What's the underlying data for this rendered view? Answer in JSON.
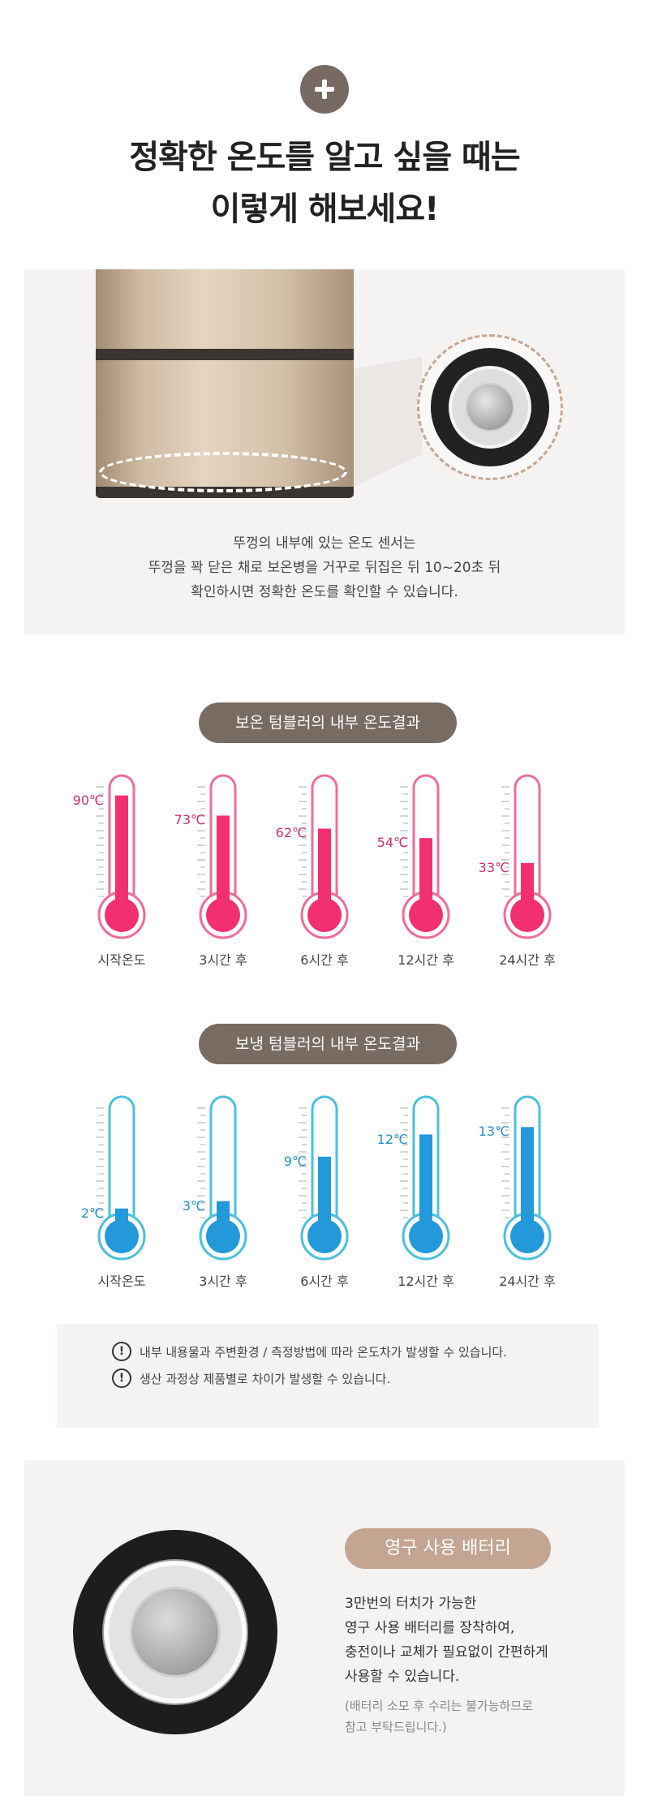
{
  "header": {
    "icon": "plus-icon",
    "title_line1": "정확한 온도를 알고 싶을 때는",
    "title_line2": "이렇게 해보세요!"
  },
  "sensor_section": {
    "desc_line1": "뚜껑의 내부에 있는 온도 센서는",
    "desc_line2": "뚜껑을 꽉 닫은 채로 보온병을 거꾸로 뒤집은 뒤 10~20초 뒤",
    "desc_line3": "확인하시면 정확한 온도를 확인할 수 있습니다."
  },
  "warm_results": {
    "title": "보온 텀블러의 내부 온도결과",
    "color": "#f2306f",
    "items": [
      {
        "value": 90,
        "value_label": "90℃",
        "label": "시작온도"
      },
      {
        "value": 73,
        "value_label": "73℃",
        "label": "3시간 후"
      },
      {
        "value": 62,
        "value_label": "62℃",
        "label": "6시간 후"
      },
      {
        "value": 54,
        "value_label": "54℃",
        "label": "12시간 후"
      },
      {
        "value": 33,
        "value_label": "33℃",
        "label": "24시간 후"
      }
    ]
  },
  "cold_results": {
    "title": "보냉 텀블러의 내부 온도결과",
    "color": "#2399d9",
    "items": [
      {
        "value": 2,
        "value_label": "2℃",
        "label": "시작온도"
      },
      {
        "value": 3,
        "value_label": "3℃",
        "label": "3시간 후"
      },
      {
        "value": 9,
        "value_label": "9℃",
        "label": "6시간 후"
      },
      {
        "value": 12,
        "value_label": "12℃",
        "label": "12시간 후"
      },
      {
        "value": 13,
        "value_label": "13℃",
        "label": "24시간 후"
      }
    ]
  },
  "notice": {
    "icon": "alert-icon",
    "line1": "내부 내용물과 주변환경 / 측정방법에 따라 온도차가 발생할 수 있습니다.",
    "line2": "생산 과정상 제품별로 차이가 발생할 수 있습니다."
  },
  "battery": {
    "title": "영구 사용 배터리",
    "line1": "3만번의 터치가 가능한",
    "line2": "영구 사용 배터리를 장착하여,",
    "line3": "충전이나 교체가 필요없이 간편하게",
    "line4": "사용할 수 있습니다.",
    "note_line1": "(배터리 소모 후 수리는 불가능하므로",
    "note_line2": "참고 부탁드립니다.)"
  }
}
